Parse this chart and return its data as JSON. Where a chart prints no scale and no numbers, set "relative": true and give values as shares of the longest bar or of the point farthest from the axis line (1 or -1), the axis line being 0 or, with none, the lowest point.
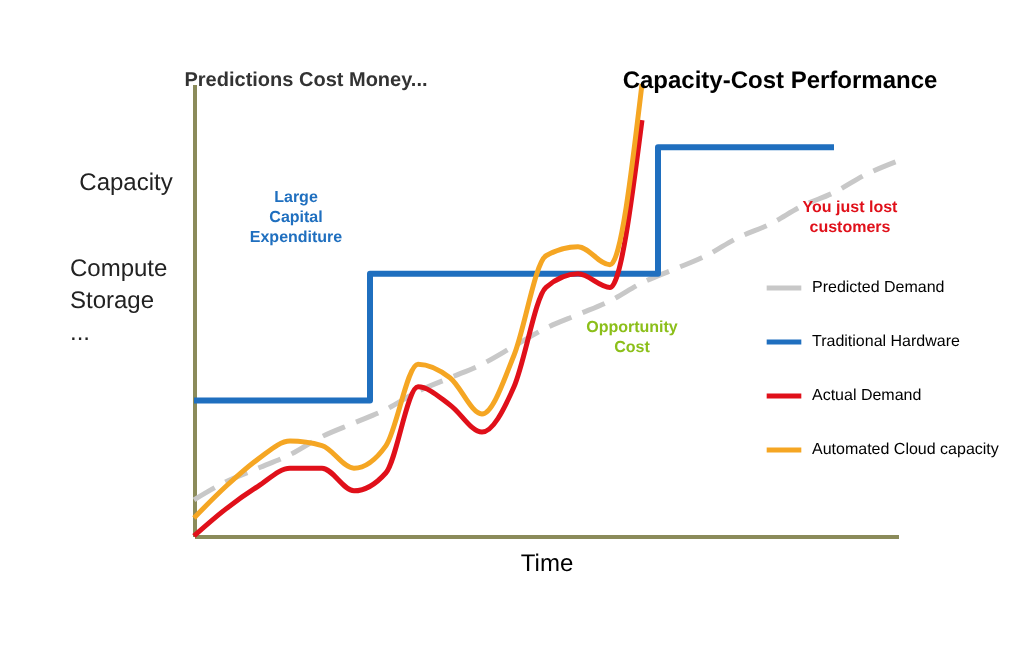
{
  "chart_data": {
    "type": "line",
    "title": "Capacity-Cost Performance",
    "ylabel": "Predictions Cost Money...",
    "xlabel": "Time",
    "relative": true,
    "legend": "right",
    "grid": false,
    "categories": [
      null,
      null,
      null,
      null,
      null,
      null,
      null,
      null,
      null,
      null,
      null,
      null,
      null,
      null,
      null,
      null,
      null,
      null,
      null,
      null,
      null,
      null,
      null
    ],
    "series": [
      {
        "name": "Predicted Demand",
        "color": "#c8c8c8",
        "line_style": "dashed",
        "values": [
          0.08,
          0.12,
          0.15,
          0.18,
          0.22,
          0.25,
          0.28,
          0.32,
          0.35,
          0.38,
          0.42,
          0.46,
          0.49,
          0.52,
          0.56,
          0.59,
          0.62,
          0.66,
          0.69,
          0.73,
          0.76,
          0.8,
          0.83
        ]
      },
      {
        "name": "Traditional Hardware",
        "color": "#1f6fbf",
        "type": "step",
        "values": [
          0.3,
          0.3,
          0.3,
          0.3,
          0.3,
          0.3,
          0.58,
          0.58,
          0.58,
          0.58,
          0.58,
          0.58,
          0.58,
          0.58,
          0.58,
          0.86,
          0.86,
          0.86,
          0.86,
          0.86,
          0.86,
          null,
          null
        ]
      },
      {
        "name": "Actual Demand",
        "color": "#e0101a",
        "values": [
          0,
          0.06,
          0.11,
          0.15,
          0.15,
          0.1,
          0.14,
          0.33,
          0.29,
          0.23,
          0.33,
          0.55,
          0.58,
          0.55,
          0.92,
          null,
          null,
          null,
          null,
          null,
          null,
          null,
          null
        ]
      },
      {
        "name": "Automated Cloud capacity",
        "color": "#f5a623",
        "values": [
          0.04,
          0.11,
          0.17,
          0.21,
          0.2,
          0.15,
          0.2,
          0.38,
          0.35,
          0.27,
          0.4,
          0.62,
          0.64,
          0.6,
          1.0,
          null,
          null,
          null,
          null,
          null,
          null,
          null,
          null
        ]
      }
    ],
    "annotations": [
      "Capacity",
      "Compute\nStorage\n...",
      "Large\nCapital\nExpenditure",
      "Opportunity\nCost",
      "You just lost\ncustomers"
    ]
  }
}
